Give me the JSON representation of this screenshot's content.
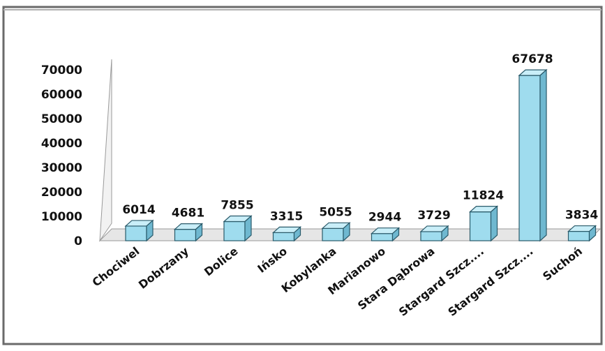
{
  "chart_data": {
    "type": "bar",
    "title": "",
    "xlabel": "",
    "ylabel": "",
    "categories": [
      "Chociwel",
      "Dobrzany",
      "Dolice",
      "Ińsko",
      "Kobylanka",
      "Marianowo",
      "Stara Dąbrowa",
      "Stargard Szcz....",
      "Stargard Szcz....",
      "Suchoń"
    ],
    "values": [
      6014,
      4681,
      7855,
      3315,
      5055,
      2944,
      3729,
      11824,
      67678,
      3834
    ],
    "data_labels": [
      "6014",
      "4681",
      "7855",
      "3315",
      "5055",
      "2944",
      "3729",
      "11824",
      "67678",
      "3834"
    ],
    "ylim": [
      0,
      70000
    ],
    "yticks": [
      0,
      10000,
      20000,
      30000,
      40000,
      50000,
      60000,
      70000
    ],
    "ytick_labels": [
      "0",
      "10000",
      "20000",
      "30000",
      "40000",
      "50000",
      "60000",
      "70000"
    ],
    "grid": false,
    "legend": "none",
    "bar_color": "#9fdcee",
    "bar_top_color": "#c9eef8",
    "bar_side_color": "#6fb8d0"
  }
}
